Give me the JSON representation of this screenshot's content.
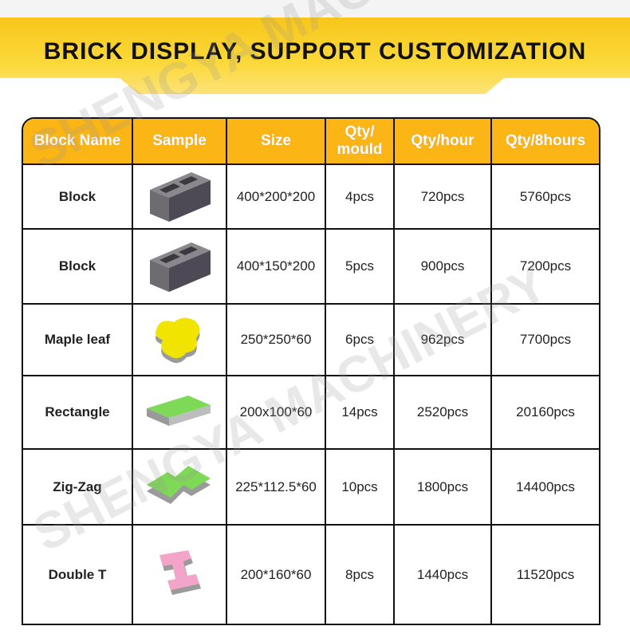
{
  "banner": {
    "title": "BRICK DISPLAY, SUPPORT CUSTOMIZATION"
  },
  "watermark": "SHENGYA MACHINERY",
  "table": {
    "headers": [
      "Block Name",
      "Sample",
      "Size",
      "Qty/ mould",
      "Qty/hour",
      "Qty/8hours"
    ],
    "rows": [
      {
        "name": "Block",
        "sample": "hollow-block-gray",
        "size": "400*200*200",
        "mould": "4pcs",
        "hour": "720pcs",
        "hours8": "5760pcs"
      },
      {
        "name": "Block",
        "sample": "hollow-block-gray",
        "size": "400*150*200",
        "mould": "5pcs",
        "hour": "900pcs",
        "hours8": "7200pcs"
      },
      {
        "name": "Maple leaf",
        "sample": "maple-leaf-paver-yellow",
        "size": "250*250*60",
        "mould": "6pcs",
        "hour": "962pcs",
        "hours8": "7700pcs"
      },
      {
        "name": "Rectangle",
        "sample": "rectangle-paver-green",
        "size": "200x100*60",
        "mould": "14pcs",
        "hour": "2520pcs",
        "hours8": "20160pcs"
      },
      {
        "name": "Zig-Zag",
        "sample": "zigzag-paver-green",
        "size": "225*112.5*60",
        "mould": "10pcs",
        "hour": "1800pcs",
        "hours8": "14400pcs"
      },
      {
        "name": "Double T",
        "sample": "double-t-paver-pink",
        "size": "200*160*60",
        "mould": "8pcs",
        "hour": "1440pcs",
        "hours8": "11520pcs"
      }
    ]
  },
  "colors": {
    "header": "#fbb515",
    "banner": "#f8c61a",
    "yellow": "#f0e400",
    "green": "#7ed957",
    "pink": "#f2a5c8",
    "gray": "#6e6c72"
  }
}
